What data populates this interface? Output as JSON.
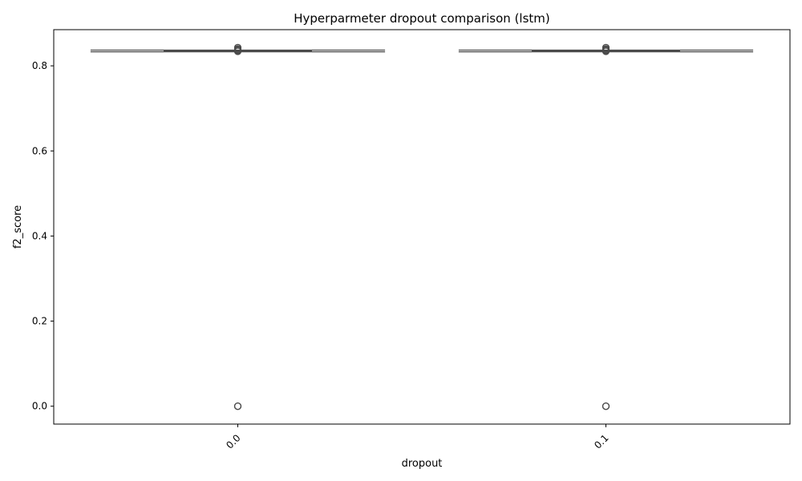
{
  "chart_data": {
    "type": "box",
    "title": "Hyperparmeter dropout comparison (lstm)",
    "xlabel": "dropout",
    "ylabel": "f2_score",
    "categories": [
      "0.0",
      "0.1"
    ],
    "ylim": [
      -0.042,
      0.885
    ],
    "yticks": [
      0.0,
      0.2,
      0.4,
      0.6,
      0.8
    ],
    "ytick_labels": [
      "0.0",
      "0.2",
      "0.4",
      "0.6",
      "0.8"
    ],
    "grid": false,
    "box_color": "#4a4a4a",
    "boxes": [
      {
        "category": "0.0",
        "whisker_low": 0.833,
        "q1": 0.834,
        "median": 0.835,
        "q3": 0.836,
        "whisker_high": 0.837,
        "outliers": [
          0.0,
          0.0,
          0.0,
          0.834,
          0.836,
          0.838,
          0.84,
          0.843
        ]
      },
      {
        "category": "0.1",
        "whisker_low": 0.833,
        "q1": 0.834,
        "median": 0.835,
        "q3": 0.836,
        "whisker_high": 0.837,
        "outliers": [
          0.0,
          0.0,
          0.0,
          0.834,
          0.836,
          0.838,
          0.84,
          0.843
        ]
      }
    ]
  }
}
